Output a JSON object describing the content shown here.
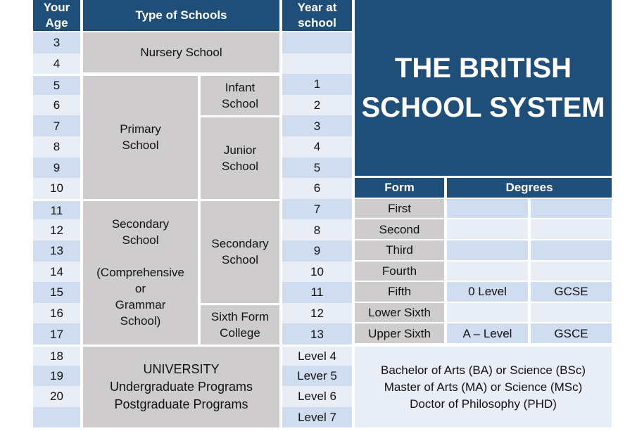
{
  "headers": {
    "age": "Your\nAge",
    "type": "Type of Schools",
    "year": "Year at\nschool",
    "form": "Form",
    "degrees": "Degrees"
  },
  "title": "THE BRITISH\nSCHOOL SYSTEM",
  "ages": [
    "3",
    "4",
    "5",
    "6",
    "7",
    "8",
    "9",
    "10",
    "11",
    "12",
    "13",
    "14",
    "15",
    "16",
    "17",
    "18",
    "19",
    "20",
    ""
  ],
  "schools": {
    "nursery": "Nursery School",
    "primary": "Primary\nSchool",
    "infant": "Infant\nSchool",
    "junior": "Junior\nSchool",
    "secondary": "Secondary\nSchool\n\n(Comprehensive\nor\nGrammar\nSchool)",
    "secondary_sub": "Secondary\nSchool",
    "sixth_form": "Sixth Form\nCollege",
    "university": "UNIVERSITY\nUndergraduate  Programs\nPostgraduate Programs"
  },
  "years": [
    "",
    "",
    "1",
    "2",
    "3",
    "4",
    "5",
    "6",
    "7",
    "8",
    "9",
    "10",
    "11",
    "12",
    "13",
    "Level 4",
    "Lever 5",
    "Level 6",
    "Level 7"
  ],
  "forms": [
    {
      "form": "First",
      "deg1": "",
      "deg2": ""
    },
    {
      "form": "Second",
      "deg1": "",
      "deg2": ""
    },
    {
      "form": "Third",
      "deg1": "",
      "deg2": ""
    },
    {
      "form": "Fourth",
      "deg1": "",
      "deg2": ""
    },
    {
      "form": "Fifth",
      "deg1": "0 Level",
      "deg2": "GCSE"
    },
    {
      "form": "Lower Sixth",
      "deg1": "",
      "deg2": ""
    },
    {
      "form": "Upper Sixth",
      "deg1": "A – Level",
      "deg2": "GSCE"
    }
  ],
  "higher_degrees": "Bachelor of Arts (BA) or Science (BSc)\nMaster of Arts (MA) or Science (MSc)\nDoctor of Philosophy (PHD)",
  "colors": {
    "header": "#1f4e79",
    "row_dark": "#d0dcef",
    "row_light": "#e9edf5",
    "school_gray": "#cfcccd"
  }
}
